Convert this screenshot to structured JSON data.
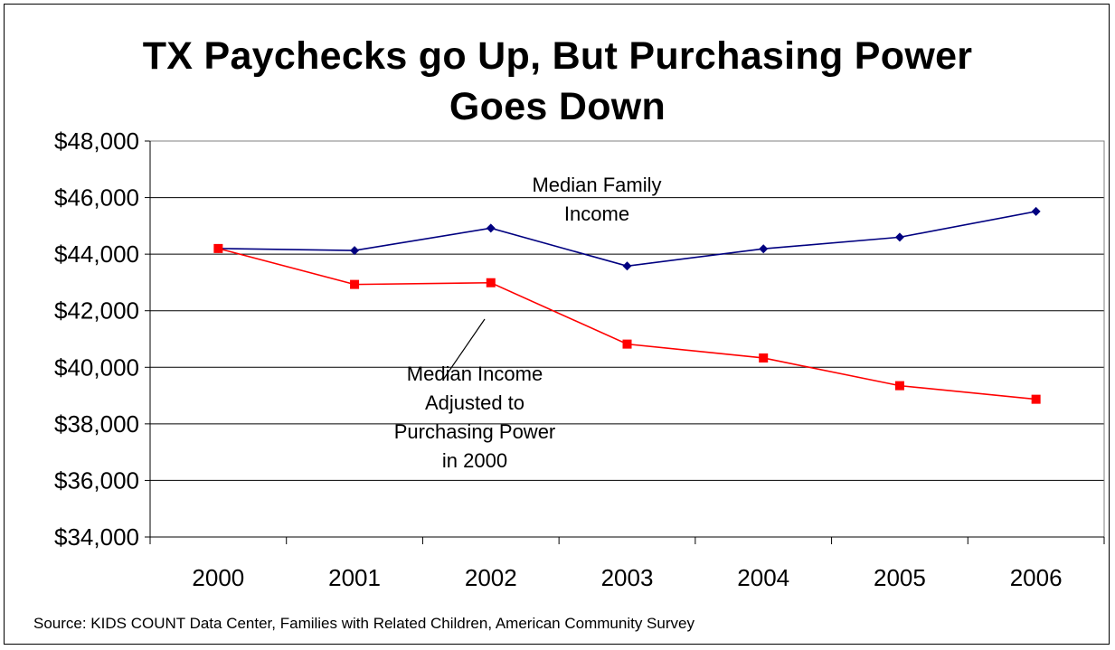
{
  "chart_data": {
    "type": "line",
    "title_lines": [
      "TX Paychecks go Up, But Purchasing Power",
      "Goes Down"
    ],
    "categories": [
      "2000",
      "2001",
      "2002",
      "2003",
      "2004",
      "2005",
      "2006"
    ],
    "ylim": [
      34000,
      48000
    ],
    "y_ticks": [
      48000,
      46000,
      44000,
      42000,
      40000,
      38000,
      36000,
      34000
    ],
    "y_tick_labels": [
      "$48,000",
      "$46,000",
      "$44,000",
      "$42,000",
      "$40,000",
      "$38,000",
      "$36,000",
      "$34,000"
    ],
    "grid": true,
    "legend": "none",
    "series": [
      {
        "name": "Median Family Income",
        "color": "#000080",
        "marker": "diamond",
        "values": [
          44200,
          44130,
          44920,
          43580,
          44190,
          44600,
          45510
        ]
      },
      {
        "name": "Median Income Adjusted to Purchasing Power in 2000",
        "color": "#ff0000",
        "marker": "square",
        "values": [
          44200,
          42930,
          42990,
          40820,
          40330,
          39350,
          38870
        ]
      }
    ],
    "annotations": [
      {
        "lines": [
          "Median Family",
          "Income"
        ]
      },
      {
        "lines": [
          "Median Income",
          "Adjusted to",
          "Purchasing Power",
          "in 2000"
        ]
      }
    ],
    "source": "Source: KIDS COUNT Data Center, Families with Related Children, American Community Survey"
  }
}
